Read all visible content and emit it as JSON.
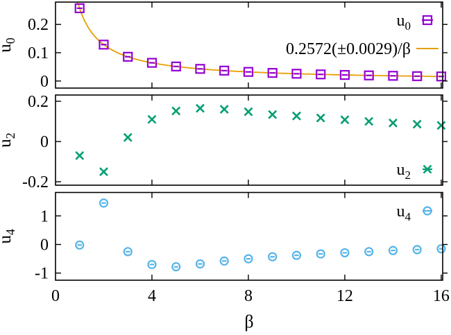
{
  "chart_data": {
    "type": "scatter",
    "title": "",
    "xlabel": "β",
    "x": [
      1,
      2,
      3,
      4,
      5,
      6,
      7,
      8,
      9,
      10,
      11,
      12,
      13,
      14,
      15,
      16
    ],
    "xlim": [
      0,
      16.06
    ],
    "x_ticks": [
      0,
      4,
      8,
      12,
      16
    ],
    "grid": false,
    "error_bars": true,
    "panels": [
      {
        "id": "u0",
        "ylabel": "u",
        "ylabel_sub": "0",
        "ylim": [
          -0.025,
          0.279
        ],
        "yticks": [
          {
            "value": 0,
            "label": "0"
          },
          {
            "value": 0.1,
            "label": "0.1"
          },
          {
            "value": 0.2,
            "label": "0.2"
          }
        ],
        "marker": "square",
        "color": "#9400d3",
        "values": [
          0.2572,
          0.1286,
          0.0857,
          0.0643,
          0.0514,
          0.0429,
          0.0367,
          0.0322,
          0.0286,
          0.0257,
          0.0234,
          0.0214,
          0.0198,
          0.0184,
          0.0171,
          0.0161
        ],
        "fit": {
          "label": "0.2572(±0.0029)/β",
          "coefficient": 0.2572,
          "uncertainty": 0.0029,
          "color": "#e69f00"
        },
        "legend_pos": "top-right",
        "legend": [
          {
            "main": "u",
            "sub": "0",
            "sample": "square"
          },
          {
            "main": "0.2572(±0.0029)/β",
            "sub": "",
            "sample": "line"
          }
        ]
      },
      {
        "id": "u2",
        "ylabel": "u",
        "ylabel_sub": "2",
        "ylim": [
          -0.217,
          0.231
        ],
        "yticks": [
          {
            "value": -0.2,
            "label": "-0.2"
          },
          {
            "value": 0,
            "label": "0"
          },
          {
            "value": 0.2,
            "label": "0.2"
          }
        ],
        "marker": "cross",
        "color": "#009e73",
        "values": [
          -0.07,
          -0.15,
          0.02,
          0.11,
          0.152,
          0.165,
          0.16,
          0.148,
          0.134,
          0.127,
          0.117,
          0.108,
          0.1,
          0.092,
          0.086,
          0.08
        ],
        "legend_pos": "bottom-right",
        "legend": [
          {
            "main": "u",
            "sub": "2",
            "sample": "cross"
          }
        ]
      },
      {
        "id": "u4",
        "ylabel": "u",
        "ylabel_sub": "4",
        "ylim": [
          -1.25,
          1.82
        ],
        "yticks": [
          {
            "value": -1,
            "label": "-1"
          },
          {
            "value": 0,
            "label": "0"
          },
          {
            "value": 1,
            "label": "1"
          }
        ],
        "marker": "circle",
        "color": "#56b4e9",
        "values": [
          -0.02,
          1.45,
          -0.25,
          -0.7,
          -0.78,
          -0.68,
          -0.58,
          -0.5,
          -0.43,
          -0.38,
          -0.33,
          -0.29,
          -0.25,
          -0.21,
          -0.18,
          -0.15
        ],
        "legend_pos": "top-right",
        "legend": [
          {
            "main": "u",
            "sub": "4",
            "sample": "circle"
          }
        ]
      }
    ]
  }
}
